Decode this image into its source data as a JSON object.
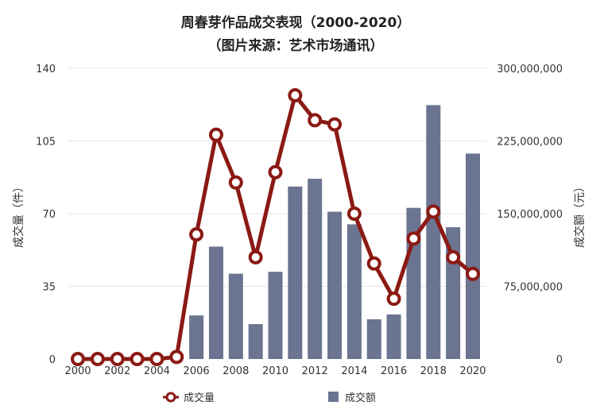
{
  "chart_data": {
    "type": "bar+line",
    "title": "周春芽作品成交表现（2000-2020）",
    "subtitle": "（图片来源：艺术市场通讯）",
    "x": [
      2000,
      2001,
      2002,
      2003,
      2004,
      2005,
      2006,
      2007,
      2008,
      2009,
      2010,
      2011,
      2012,
      2013,
      2014,
      2015,
      2016,
      2017,
      2018,
      2019,
      2020
    ],
    "x_tick_labels": [
      "2000",
      "2002",
      "2004",
      "2006",
      "2008",
      "2010",
      "2012",
      "2014",
      "2016",
      "2018",
      "2020"
    ],
    "left_axis": {
      "label": "成交量（件）",
      "ylim": [
        0,
        140
      ],
      "ticks": [
        "0",
        "35",
        "70",
        "105",
        "140"
      ]
    },
    "right_axis": {
      "label": "成交额（元）",
      "ylim": [
        0,
        300000000
      ],
      "ticks": [
        "0",
        "75,000,000",
        "150,000,000",
        "225,000,000",
        "300,000,000"
      ]
    },
    "series": [
      {
        "name": "成交量",
        "type": "line",
        "axis": "left",
        "color": "#8b1a14",
        "values": [
          0,
          0,
          0,
          0,
          0,
          1,
          60,
          108,
          85,
          49,
          90,
          127,
          115,
          113,
          70,
          46,
          29,
          58,
          71,
          49,
          41
        ]
      },
      {
        "name": "成交额",
        "type": "bar",
        "axis": "right",
        "color": "#6b7490",
        "values": [
          0,
          0,
          0,
          0,
          0,
          0,
          45000000,
          116000000,
          88000000,
          36000000,
          90000000,
          178000000,
          186000000,
          152000000,
          139000000,
          41000000,
          46000000,
          156000000,
          262000000,
          136000000,
          212000000
        ]
      }
    ],
    "legend": {
      "placement": "bottom",
      "items": [
        "成交量",
        "成交额"
      ]
    },
    "grid": true
  }
}
